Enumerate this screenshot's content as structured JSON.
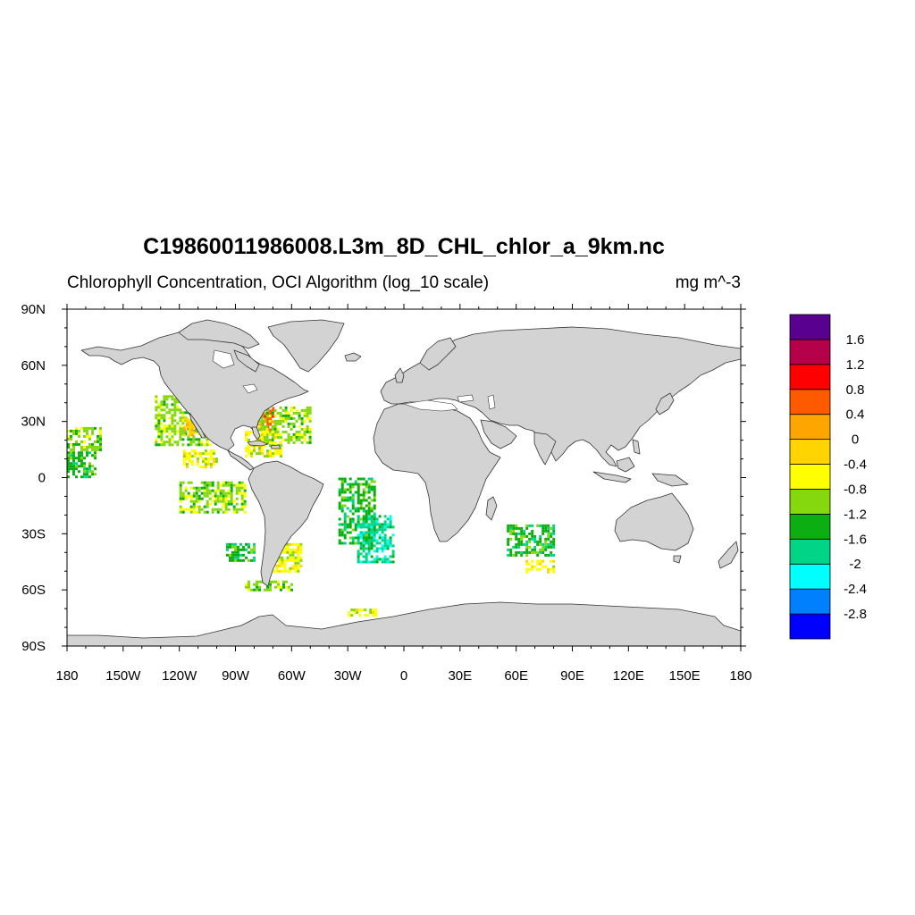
{
  "title": "C19860011986008.L3m_8D_CHL_chlor_a_9km.nc",
  "subtitle_left": "Chlorophyll Concentration, OCI Algorithm (log_10 scale)",
  "subtitle_right": "mg m^-3",
  "lon_ticks": [
    "180",
    "150W",
    "120W",
    "90W",
    "60W",
    "30W",
    "0",
    "30E",
    "60E",
    "90E",
    "120E",
    "150E",
    "180"
  ],
  "lat_ticks": [
    "90N",
    "60N",
    "30N",
    "0",
    "30S",
    "60S",
    "90S"
  ],
  "colorbar": {
    "colors": [
      "#0000ff",
      "#0080ff",
      "#00ffff",
      "#00d486",
      "#0caf11",
      "#84d80c",
      "#ffff00",
      "#ffd400",
      "#ffa500",
      "#ff5a00",
      "#ff0000",
      "#b5004a",
      "#5a0090"
    ],
    "labels": [
      "-2.8",
      "-2.4",
      "-2",
      "-1.6",
      "-1.2",
      "-0.8",
      "-0.4",
      "0",
      "0.4",
      "0.8",
      "1.2",
      "1.6"
    ]
  },
  "data_patches": [
    {
      "region": "NE Pacific",
      "lon": [
        -133,
        -103
      ],
      "lat": [
        18,
        44
      ],
      "class": 5
    },
    {
      "region": "Baja coast",
      "lon": [
        -118,
        -108
      ],
      "lat": [
        22,
        32
      ],
      "class": 7
    },
    {
      "region": "Hawaii",
      "lon": [
        -180,
        -162
      ],
      "lat": [
        15,
        27
      ],
      "class": 5
    },
    {
      "region": "Central Pacific",
      "lon": [
        -180,
        -165
      ],
      "lat": [
        0,
        14
      ],
      "class": 4
    },
    {
      "region": "Eastern tropical Pacific",
      "lon": [
        -118,
        -100
      ],
      "lat": [
        5,
        15
      ],
      "class": 6
    },
    {
      "region": "US East coast",
      "lon": [
        -82,
        -70
      ],
      "lat": [
        25,
        42
      ],
      "class": 9
    },
    {
      "region": "Sargasso Sea",
      "lon": [
        -78,
        -50
      ],
      "lat": [
        18,
        38
      ],
      "class": 5
    },
    {
      "region": "Caribbean",
      "lon": [
        -85,
        -65
      ],
      "lat": [
        12,
        25
      ],
      "class": 6
    },
    {
      "region": "South Pacific",
      "lon": [
        -120,
        -85
      ],
      "lat": [
        -18,
        -2
      ],
      "class": 5
    },
    {
      "region": "SE Pacific",
      "lon": [
        -95,
        -80
      ],
      "lat": [
        -45,
        -35
      ],
      "class": 4
    },
    {
      "region": "Patagonia shelf",
      "lon": [
        -70,
        -55
      ],
      "lat": [
        -50,
        -35
      ],
      "class": 6
    },
    {
      "region": "S Atlantic",
      "lon": [
        -35,
        -15
      ],
      "lat": [
        -35,
        0
      ],
      "class": 4
    },
    {
      "region": "S Atlantic gyre",
      "lon": [
        -25,
        -5
      ],
      "lat": [
        -45,
        -20
      ],
      "class": 3
    },
    {
      "region": "S Indian Ocean",
      "lon": [
        55,
        80
      ],
      "lat": [
        -42,
        -25
      ],
      "class": 4
    },
    {
      "region": "S Indian west",
      "lon": [
        65,
        80
      ],
      "lat": [
        -50,
        -44
      ],
      "class": 6
    },
    {
      "region": "Drake Passage",
      "lon": [
        -85,
        -60
      ],
      "lat": [
        -60,
        -55
      ],
      "class": 5
    },
    {
      "region": "Weddell",
      "lon": [
        -30,
        -15
      ],
      "lat": [
        -73,
        -70
      ],
      "class": 6
    }
  ]
}
